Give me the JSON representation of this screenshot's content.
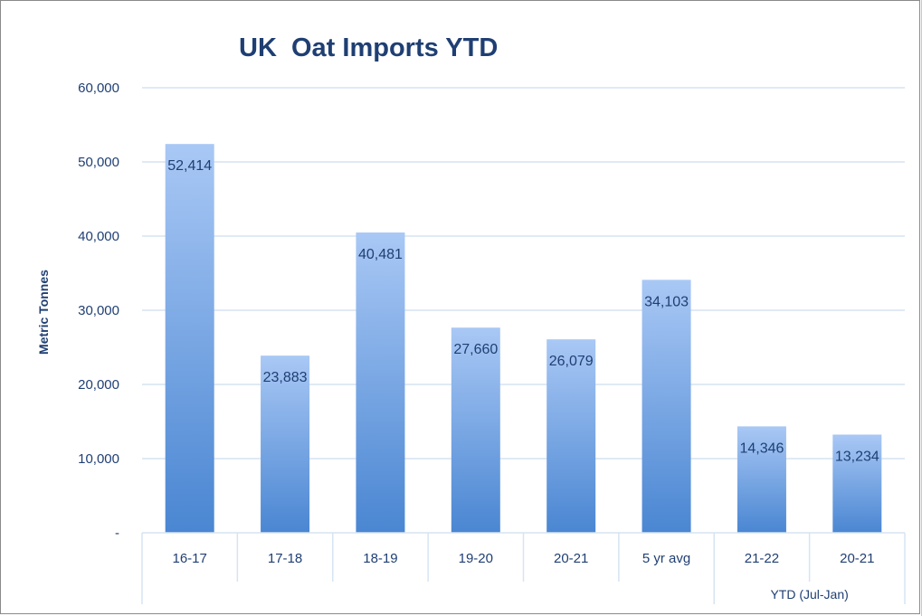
{
  "chart_data": {
    "type": "bar",
    "title": "UK  Oat Imports YTD",
    "ylabel": "Metric Tonnes",
    "xlabel": "",
    "categories": [
      "16-17",
      "17-18",
      "18-19",
      "19-20",
      "20-21",
      "5 yr avg",
      "21-22",
      "20-21"
    ],
    "values": [
      52414,
      23883,
      40481,
      27660,
      26079,
      34103,
      14346,
      13234
    ],
    "data_labels": [
      "52,414",
      "23,883",
      "40,481",
      "27,660",
      "26,079",
      "34,103",
      "14,346",
      "13,234"
    ],
    "ylim": [
      0,
      60000
    ],
    "yticks": [
      0,
      10000,
      20000,
      30000,
      40000,
      50000,
      60000
    ],
    "ytick_labels": [
      "-",
      "10,000",
      "20,000",
      "30,000",
      "40,000",
      "50,000",
      "60,000"
    ],
    "category_group": {
      "label": "YTD (Jul-Jan)",
      "categories": [
        "21-22",
        "20-21"
      ]
    },
    "grid": true,
    "legend": "none",
    "colors": {
      "bar_top": "#a9c8f5",
      "bar_bottom": "#4a86d2",
      "text": "#1f3f73",
      "grid": "#d6e4f2"
    }
  }
}
